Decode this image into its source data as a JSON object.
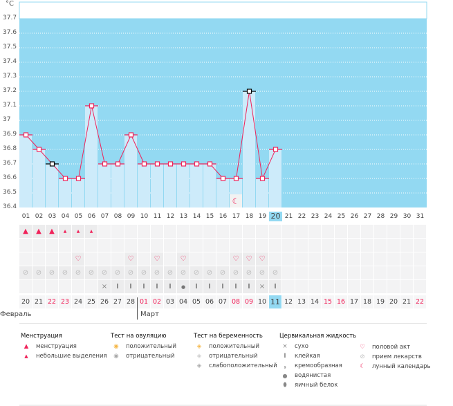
{
  "chart_data": {
    "type": "line",
    "unit": "°C",
    "ylim": [
      36.4,
      37.7
    ],
    "yticks": [
      "36.4",
      "36.5",
      "36.6",
      "36.7",
      "36.8",
      "36.9",
      "37",
      "37.1",
      "37.2",
      "37.3",
      "37.4",
      "37.5",
      "37.6",
      "37.7"
    ],
    "cycle_days": [
      "01",
      "02",
      "03",
      "04",
      "05",
      "06",
      "07",
      "08",
      "09",
      "10",
      "11",
      "12",
      "13",
      "14",
      "15",
      "16",
      "17",
      "18",
      "19",
      "20",
      "21",
      "22",
      "23",
      "24",
      "25",
      "26",
      "27",
      "28",
      "29",
      "30",
      "31"
    ],
    "current_day_index": 19,
    "temperatures": [
      36.9,
      36.8,
      36.7,
      36.6,
      36.6,
      37.1,
      36.7,
      36.7,
      36.9,
      36.7,
      36.7,
      36.7,
      36.7,
      36.7,
      36.7,
      36.6,
      36.6,
      37.2,
      36.6,
      36.8
    ],
    "black_markers_days": [
      3,
      18
    ],
    "moon_day": 17
  },
  "rows": {
    "menstruation": [
      "heavy",
      "heavy",
      "heavy",
      "light",
      "light",
      "light"
    ],
    "intercourse_days": [
      5,
      9,
      11,
      13,
      17,
      18,
      19
    ],
    "medication_days": 20,
    "cervical_fluid": [
      "",
      "",
      "",
      "",
      "",
      "",
      "dry",
      "sticky",
      "sticky",
      "sticky",
      "sticky",
      "sticky",
      "watery",
      "sticky",
      "sticky",
      "sticky",
      "sticky",
      "sticky",
      "dry",
      "sticky"
    ]
  },
  "dates": [
    "20",
    "21",
    "22",
    "23",
    "24",
    "25",
    "26",
    "27",
    "28",
    "01",
    "02",
    "03",
    "04",
    "05",
    "06",
    "07",
    "08",
    "09",
    "10",
    "11",
    "12",
    "13",
    "14",
    "15",
    "16",
    "17",
    "18",
    "19",
    "20",
    "21",
    "22"
  ],
  "red_dates_index": [
    2,
    3,
    9,
    10,
    16,
    17,
    23,
    24,
    30
  ],
  "months": {
    "feb": "Февраль",
    "mar": "Март"
  },
  "legend": {
    "menstruation": {
      "title": "Менструация",
      "items": [
        "менструация",
        "небольшие выделения"
      ]
    },
    "ovulation": {
      "title": "Тест на овуляцию",
      "items": [
        "положительный",
        "отрицательный"
      ]
    },
    "pregnancy": {
      "title": "Тест на беременность",
      "items": [
        "положительный",
        "отрицательный",
        "слабоположительный"
      ]
    },
    "fluid": {
      "title": "Цервикальная жидкость",
      "items": [
        "сухо",
        "клейкая",
        "кремообразная",
        "водянистая",
        "яичный белок"
      ]
    },
    "other": {
      "items": [
        "половой акт",
        "прием лекарств",
        "лунный календарь"
      ]
    }
  },
  "colors": {
    "bg": "#93d9f2",
    "bar": "#cdebfa",
    "line": "#f0235a",
    "today": "#93d9f2"
  }
}
